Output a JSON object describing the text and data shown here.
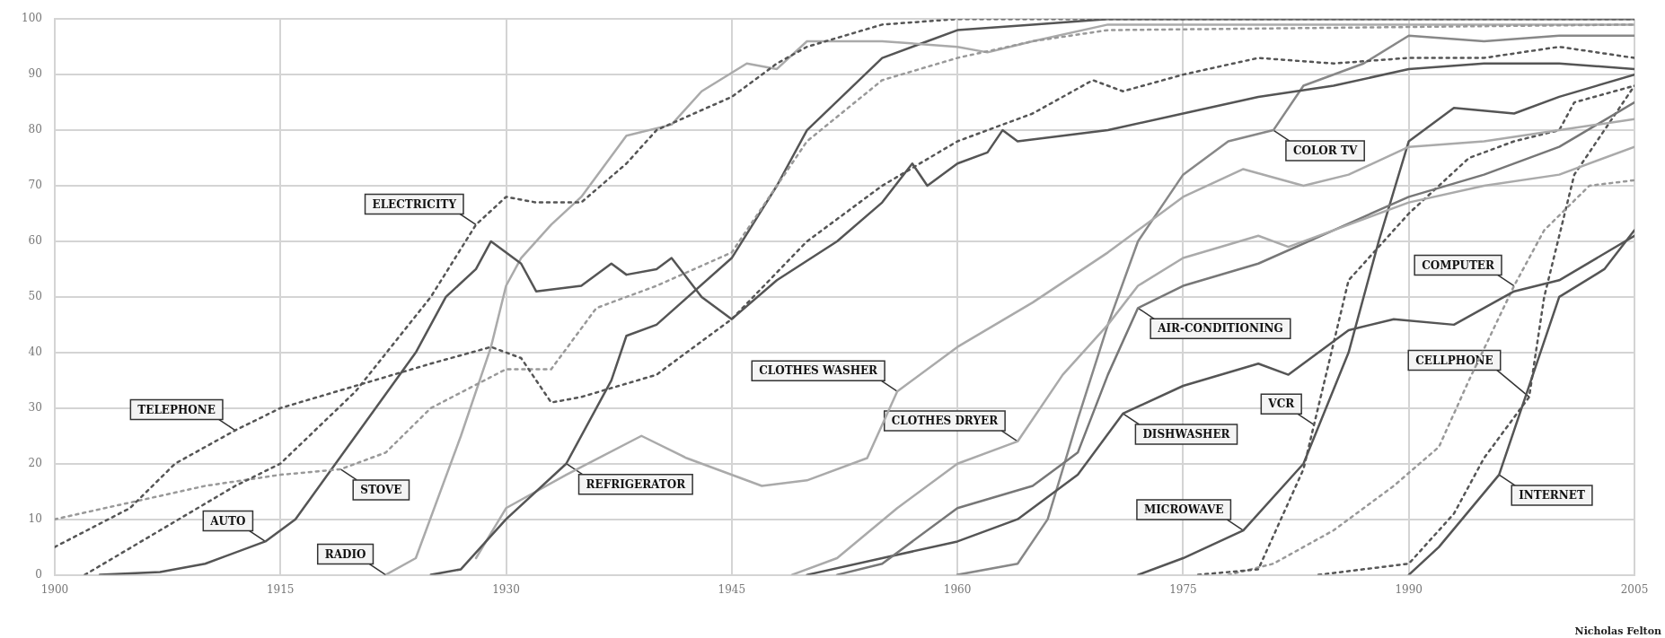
{
  "chart_data": {
    "type": "line",
    "xlim": [
      1900,
      2005
    ],
    "xticks": [
      1900,
      1915,
      1930,
      1945,
      1960,
      1975,
      1990,
      2005
    ],
    "ylim": [
      0,
      100
    ],
    "yticks": [
      0,
      10,
      20,
      30,
      40,
      50,
      60,
      70,
      80,
      90,
      100
    ],
    "grid": true,
    "legend": false,
    "marker": "none",
    "series": [
      {
        "color": "#555555",
        "line_style": "dotted",
        "x": [
          1902,
          1907,
          1912,
          1915,
          1920,
          1925,
          1928,
          1930,
          1932,
          1935,
          1938,
          1940,
          1945,
          1948,
          1950,
          1955,
          1960,
          1965,
          2005
        ],
        "values": [
          0,
          8,
          16,
          20,
          33,
          50,
          63,
          68,
          67,
          67,
          74,
          80,
          86,
          92,
          95,
          99,
          100,
          100,
          100
        ]
      },
      {
        "color": "#555555",
        "line_style": "dotted",
        "x": [
          1900,
          1905,
          1908,
          1912,
          1915,
          1920,
          1925,
          1929,
          1931,
          1933,
          1935,
          1940,
          1945,
          1950,
          1955,
          1960,
          1965,
          1969,
          1971,
          1975,
          1980,
          1985,
          1990,
          1995,
          2000,
          2005
        ],
        "values": [
          5,
          12,
          20,
          26,
          30,
          34,
          38,
          41,
          39,
          31,
          32,
          36,
          46,
          60,
          70,
          78,
          83,
          89,
          87,
          90,
          93,
          92,
          93,
          93,
          95,
          93
        ]
      },
      {
        "color": "#999999",
        "line_style": "dotted",
        "x": [
          1900,
          1905,
          1910,
          1915,
          1919,
          1922,
          1925,
          1930,
          1933,
          1936,
          1940,
          1945,
          1950,
          1955,
          1960,
          1965,
          1970,
          2005
        ],
        "values": [
          10,
          13,
          16,
          18,
          19,
          22,
          30,
          37,
          37,
          48,
          52,
          58,
          78,
          89,
          93,
          96,
          98,
          99
        ]
      },
      {
        "color": "#555555",
        "line_style": "solid",
        "x": [
          1903,
          1907,
          1910,
          1914,
          1916,
          1920,
          1924,
          1926,
          1928,
          1929,
          1931,
          1932,
          1935,
          1937,
          1938,
          1940,
          1941,
          1943,
          1945,
          1948,
          1952,
          1955,
          1957,
          1958,
          1960,
          1962,
          1963,
          1964,
          1970,
          1975,
          1980,
          1985,
          1990,
          1995,
          2000,
          2005
        ],
        "values": [
          0,
          0.5,
          2,
          6,
          10,
          25,
          40,
          50,
          55,
          60,
          56,
          51,
          52,
          56,
          54,
          55,
          57,
          50,
          46,
          53,
          60,
          67,
          74,
          70,
          74,
          76,
          80,
          78,
          80,
          83,
          86,
          88,
          91,
          92,
          92,
          91
        ]
      },
      {
        "color": "#aaaaaa",
        "line_style": "solid",
        "x": [
          1922,
          1924,
          1927,
          1929,
          1930,
          1931,
          1933,
          1935,
          1938,
          1941,
          1943,
          1946,
          1948,
          1950,
          1955,
          1960,
          1962,
          1965,
          1970,
          2005
        ],
        "values": [
          0,
          3,
          25,
          41,
          52,
          57,
          63,
          68,
          79,
          81,
          87,
          92,
          91,
          96,
          96,
          95,
          94,
          96,
          99,
          99
        ]
      },
      {
        "color": "#555555",
        "line_style": "solid",
        "x": [
          1925,
          1927,
          1930,
          1934,
          1937,
          1938,
          1940,
          1945,
          1948,
          1950,
          1955,
          1958,
          1960,
          1965,
          1970,
          2005
        ],
        "values": [
          0,
          1,
          10,
          20,
          35,
          43,
          45,
          57,
          70,
          80,
          93,
          96,
          98,
          99,
          100,
          100
        ]
      },
      {
        "color": "#aaaaaa",
        "line_style": "solid",
        "x": [
          1928,
          1930,
          1934,
          1939,
          1942,
          1947,
          1950,
          1954,
          1956,
          1960,
          1965,
          1970,
          1975,
          1979,
          1983,
          1986,
          1990,
          1995,
          2000,
          2005
        ],
        "values": [
          3,
          12,
          18,
          25,
          21,
          16,
          17,
          21,
          33,
          41,
          49,
          58,
          68,
          73,
          70,
          72,
          77,
          78,
          80,
          82
        ]
      },
      {
        "color": "#aaaaaa",
        "line_style": "solid",
        "x": [
          1949,
          1952,
          1956,
          1960,
          1964,
          1967,
          1970,
          1972,
          1975,
          1980,
          1982,
          1985,
          1990,
          1995,
          2000,
          2005
        ],
        "values": [
          0,
          3,
          12,
          20,
          24,
          36,
          45,
          52,
          57,
          61,
          59,
          62,
          67,
          70,
          72,
          77
        ]
      },
      {
        "color": "#777777",
        "line_style": "solid",
        "x": [
          1952,
          1955,
          1960,
          1965,
          1968,
          1970,
          1972,
          1975,
          1980,
          1985,
          1990,
          1995,
          2000,
          2005
        ],
        "values": [
          0,
          2,
          12,
          16,
          22,
          36,
          48,
          52,
          56,
          62,
          68,
          72,
          77,
          85
        ]
      },
      {
        "color": "#555555",
        "line_style": "solid",
        "x": [
          1950,
          1955,
          1960,
          1964,
          1968,
          1971,
          1975,
          1980,
          1982,
          1986,
          1989,
          1993,
          1997,
          2000,
          2005
        ],
        "values": [
          0,
          3,
          6,
          10,
          18,
          29,
          34,
          38,
          36,
          44,
          46,
          45,
          51,
          53,
          61
        ]
      },
      {
        "color": "#888888",
        "line_style": "solid",
        "x": [
          1960,
          1964,
          1966,
          1968,
          1970,
          1972,
          1975,
          1978,
          1981,
          1983,
          1987,
          1990,
          1995,
          2000,
          2005
        ],
        "values": [
          0,
          2,
          10,
          28,
          45,
          60,
          72,
          78,
          80,
          88,
          92,
          97,
          96,
          97,
          97
        ]
      },
      {
        "color": "#555555",
        "line_style": "solid",
        "x": [
          1972,
          1975,
          1979,
          1983,
          1986,
          1988,
          1990,
          1993,
          1997,
          2000,
          2005
        ],
        "values": [
          0,
          3,
          8,
          20,
          40,
          60,
          78,
          84,
          83,
          86,
          90
        ]
      },
      {
        "color": "#555555",
        "line_style": "dotted",
        "x": [
          1976,
          1980,
          1983,
          1983.7,
          1984.5,
          1986,
          1990,
          1994,
          1997,
          2000,
          2001,
          2005
        ],
        "values": [
          0,
          1,
          19,
          27,
          36,
          53,
          65,
          75,
          78,
          80,
          85,
          88
        ]
      },
      {
        "color": "#999999",
        "line_style": "dotted",
        "x": [
          1978,
          1981,
          1985,
          1989,
          1992,
          1994,
          1997,
          1999,
          2002,
          2005
        ],
        "values": [
          0,
          2,
          8,
          16,
          23,
          35,
          52,
          62,
          70,
          71
        ]
      },
      {
        "color": "#555555",
        "line_style": "dotted",
        "x": [
          1984,
          1990,
          1991,
          1993,
          1995,
          1998,
          1999,
          2001,
          2005
        ],
        "values": [
          0,
          2,
          5,
          11,
          21,
          32,
          50,
          72,
          88
        ]
      },
      {
        "color": "#555555",
        "line_style": "solid",
        "x": [
          1990,
          1992,
          1996,
          2000,
          2003,
          2005
        ],
        "values": [
          0,
          5,
          18,
          50,
          55,
          62
        ]
      }
    ],
    "annotations": [
      {
        "text": "ELECTRICITY",
        "x": 1928,
        "y": 63
      },
      {
        "text": "TELEPHONE",
        "x": 1912,
        "y": 26
      },
      {
        "text": "AUTO",
        "x": 1914,
        "y": 6
      },
      {
        "text": "RADIO",
        "x": 1922,
        "y": 0
      },
      {
        "text": "REFRIGERATOR",
        "x": 1934,
        "y": 20
      },
      {
        "text": "STOVE",
        "x": 1919,
        "y": 19
      },
      {
        "text": "CLOTHES WASHER",
        "x": 1956,
        "y": 33
      },
      {
        "text": "CLOTHES DRYER",
        "x": 1964,
        "y": 24
      },
      {
        "text": "MICROWAVE",
        "x": 1979,
        "y": 8
      },
      {
        "text": "COMPUTER",
        "x": 1997,
        "y": 52
      },
      {
        "text": "CELLPHONE",
        "x": 1998,
        "y": 32
      },
      {
        "text": "COLOR TV",
        "x": 1981,
        "y": 80
      },
      {
        "text": "AIR-CONDITIONING",
        "x": 1972,
        "y": 48
      },
      {
        "text": "DISHWASHER",
        "x": 1971,
        "y": 29
      },
      {
        "text": "VCR",
        "x": 1983.7,
        "y": 27
      },
      {
        "text": "INTERNET",
        "x": 1996,
        "y": 18
      },
      "Nicholas Felton"
    ]
  }
}
